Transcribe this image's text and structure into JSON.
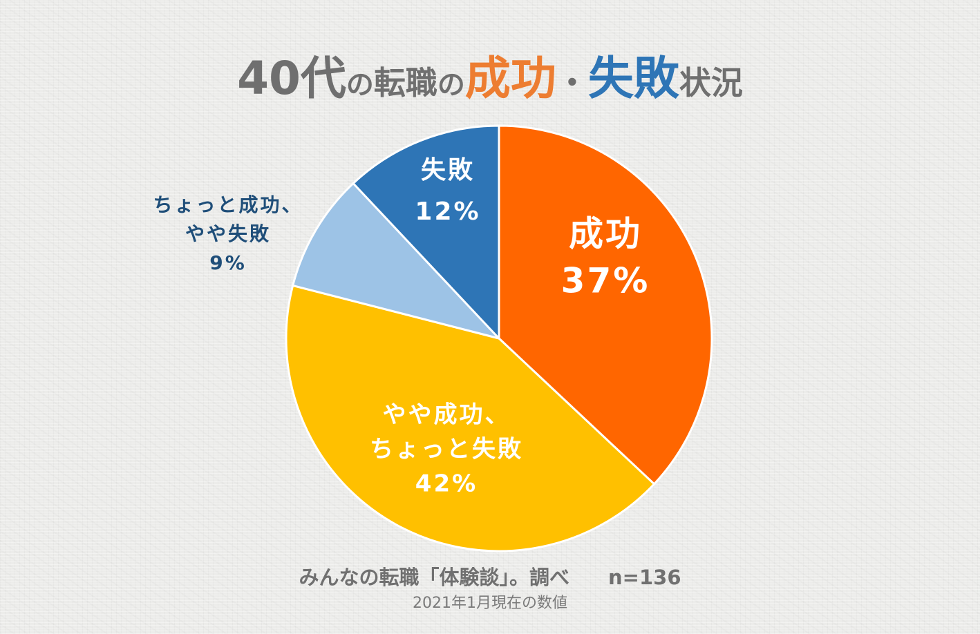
{
  "title": {
    "age": "40代",
    "particle1": "の",
    "tenshoku": "転職",
    "particle2": "の",
    "success": "成功",
    "dot": "・",
    "failure": "失敗",
    "status": "状況"
  },
  "colors": {
    "title_gray": "#6f6f6f",
    "title_success": "#ed7d31",
    "title_failure": "#2e75b6",
    "label_dark": "#1f4e79",
    "label_light": "#ffffff",
    "background": "#ececea"
  },
  "chart_data": {
    "type": "pie",
    "title": "40代の転職の成功・失敗状況",
    "start_angle_deg": 0,
    "direction": "clockwise",
    "slices": [
      {
        "label_lines": [
          "成功"
        ],
        "value": 37,
        "value_label": "37%",
        "color": "#ff6600",
        "label_color": "#ffffff"
      },
      {
        "label_lines": [
          "やや成功、",
          "ちょっと失敗"
        ],
        "value": 42,
        "value_label": "42%",
        "color": "#ffc000",
        "label_color": "#ffffff"
      },
      {
        "label_lines": [
          "ちょっと成功、",
          "やや失敗"
        ],
        "value": 9,
        "value_label": "9%",
        "color": "#9dc3e6",
        "label_color": "#1f4e79"
      },
      {
        "label_lines": [
          "失敗"
        ],
        "value": 12,
        "value_label": "12%",
        "color": "#2e75b6",
        "label_color": "#ffffff"
      }
    ]
  },
  "footer": {
    "source": "みんなの転職「体験談」。調べ",
    "n_label": "n=136",
    "note": "2021年1月現在の数値"
  }
}
